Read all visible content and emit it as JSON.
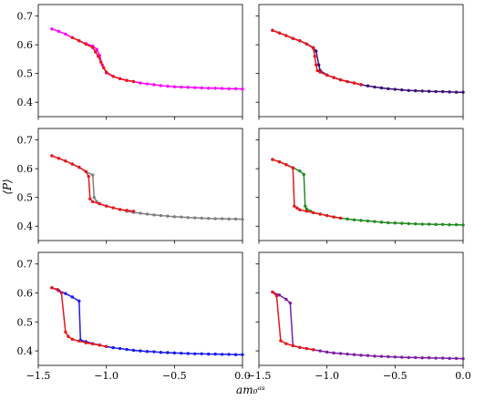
{
  "figure": {
    "ylabel": "⟨P⟩",
    "xlabel": "am₀ᵃˢ",
    "xlim": [
      -1.5,
      0.0
    ],
    "ylim": [
      0.35,
      0.74
    ],
    "xticks": [
      -1.5,
      -1.0,
      -0.5,
      0.0
    ],
    "xtick_labels": [
      "−1.5",
      "−1.0",
      "−0.5",
      "0.0"
    ],
    "yticks": [
      0.4,
      0.5,
      0.6,
      0.7
    ],
    "ytick_labels": [
      "0.4",
      "0.5",
      "0.6",
      "0.7"
    ]
  },
  "chart_data": [
    {
      "type": "line",
      "panel": "row1-left",
      "series": [
        {
          "color": "#ff00ff",
          "x": [
            -1.4,
            -1.35,
            -1.3,
            -1.25,
            -1.2,
            -1.15,
            -1.1,
            -1.07,
            -1.05,
            -1.03,
            -1.0,
            -0.95,
            -0.9,
            -0.85,
            -0.8,
            -0.75,
            -0.7,
            -0.65,
            -0.6,
            -0.55,
            -0.5,
            -0.45,
            -0.4,
            -0.35,
            -0.3,
            -0.25,
            -0.2,
            -0.15,
            -0.1,
            -0.05,
            0.0
          ],
          "y": [
            0.655,
            0.647,
            0.637,
            0.625,
            0.614,
            0.604,
            0.596,
            0.584,
            0.563,
            0.53,
            0.502,
            0.49,
            0.482,
            0.476,
            0.472,
            0.467,
            0.464,
            0.461,
            0.458,
            0.456,
            0.454,
            0.453,
            0.452,
            0.451,
            0.45,
            0.449,
            0.449,
            0.448,
            0.447,
            0.447,
            0.446
          ]
        },
        {
          "color": "#e8171a",
          "x": [
            -1.25,
            -1.2,
            -1.15,
            -1.1,
            -1.08,
            -1.06,
            -1.04,
            -1.02,
            -1.0,
            -0.95,
            -0.9,
            -0.85,
            -0.8
          ],
          "y": [
            0.625,
            0.614,
            0.602,
            0.59,
            0.575,
            0.56,
            0.54,
            0.52,
            0.505,
            0.49,
            0.482,
            0.476,
            0.472
          ]
        }
      ]
    },
    {
      "type": "line",
      "panel": "row1-right",
      "series": [
        {
          "color": "#3a1078",
          "x": [
            -1.4,
            -1.35,
            -1.3,
            -1.25,
            -1.2,
            -1.15,
            -1.1,
            -1.08,
            -1.06,
            -1.05,
            -1.0,
            -0.95,
            -0.9,
            -0.85,
            -0.8,
            -0.75,
            -0.7,
            -0.65,
            -0.6,
            -0.55,
            -0.5,
            -0.45,
            -0.4,
            -0.35,
            -0.3,
            -0.25,
            -0.2,
            -0.15,
            -0.1,
            -0.05,
            0.0
          ],
          "y": [
            0.65,
            0.641,
            0.632,
            0.622,
            0.614,
            0.603,
            0.59,
            0.578,
            0.53,
            0.51,
            0.495,
            0.486,
            0.478,
            0.472,
            0.467,
            0.461,
            0.457,
            0.453,
            0.45,
            0.447,
            0.445,
            0.443,
            0.441,
            0.44,
            0.439,
            0.438,
            0.437,
            0.437,
            0.436,
            0.435,
            0.435
          ]
        },
        {
          "color": "#e8171a",
          "x": [
            -1.4,
            -1.35,
            -1.3,
            -1.25,
            -1.2,
            -1.15,
            -1.1,
            -1.09,
            -1.08,
            -1.07,
            -1.05,
            -1.0,
            -0.95,
            -0.9,
            -0.85,
            -0.8,
            -0.75
          ],
          "y": [
            0.65,
            0.641,
            0.632,
            0.622,
            0.614,
            0.603,
            0.588,
            0.56,
            0.53,
            0.51,
            0.505,
            0.494,
            0.486,
            0.478,
            0.472,
            0.467,
            0.462
          ]
        }
      ]
    },
    {
      "type": "line",
      "panel": "row2-left",
      "series": [
        {
          "color": "#808080",
          "x": [
            -1.4,
            -1.35,
            -1.3,
            -1.25,
            -1.2,
            -1.15,
            -1.1,
            -1.09,
            -1.07,
            -1.05,
            -1.0,
            -0.95,
            -0.9,
            -0.85,
            -0.8,
            -0.75,
            -0.7,
            -0.65,
            -0.6,
            -0.55,
            -0.5,
            -0.45,
            -0.4,
            -0.35,
            -0.3,
            -0.25,
            -0.2,
            -0.15,
            -0.1,
            -0.05,
            0.0
          ],
          "y": [
            0.645,
            0.636,
            0.627,
            0.616,
            0.605,
            0.59,
            0.578,
            0.5,
            0.485,
            0.478,
            0.47,
            0.464,
            0.458,
            0.452,
            0.448,
            0.445,
            0.442,
            0.439,
            0.437,
            0.435,
            0.433,
            0.432,
            0.43,
            0.429,
            0.428,
            0.427,
            0.426,
            0.426,
            0.425,
            0.425,
            0.424
          ]
        },
        {
          "color": "#e8171a",
          "x": [
            -1.4,
            -1.35,
            -1.3,
            -1.25,
            -1.2,
            -1.15,
            -1.13,
            -1.12,
            -1.1,
            -1.05,
            -1.0,
            -0.95,
            -0.9,
            -0.85,
            -0.8
          ],
          "y": [
            0.645,
            0.636,
            0.627,
            0.616,
            0.605,
            0.59,
            0.573,
            0.495,
            0.485,
            0.478,
            0.47,
            0.464,
            0.458,
            0.455,
            0.452
          ]
        }
      ]
    },
    {
      "type": "line",
      "panel": "row2-right",
      "series": [
        {
          "color": "#228b22",
          "x": [
            -1.4,
            -1.35,
            -1.3,
            -1.25,
            -1.2,
            -1.17,
            -1.16,
            -1.15,
            -1.12,
            -1.1,
            -1.05,
            -1.0,
            -0.95,
            -0.9,
            -0.85,
            -0.8,
            -0.75,
            -0.7,
            -0.65,
            -0.6,
            -0.55,
            -0.5,
            -0.45,
            -0.4,
            -0.35,
            -0.3,
            -0.25,
            -0.2,
            -0.15,
            -0.1,
            -0.05,
            0.0
          ],
          "y": [
            0.632,
            0.624,
            0.614,
            0.603,
            0.592,
            0.58,
            0.47,
            0.46,
            0.452,
            0.447,
            0.442,
            0.437,
            0.432,
            0.428,
            0.425,
            0.422,
            0.42,
            0.418,
            0.416,
            0.414,
            0.412,
            0.411,
            0.41,
            0.409,
            0.408,
            0.407,
            0.407,
            0.406,
            0.406,
            0.405,
            0.405,
            0.404
          ]
        },
        {
          "color": "#e8171a",
          "x": [
            -1.4,
            -1.35,
            -1.3,
            -1.25,
            -1.24,
            -1.22,
            -1.2,
            -1.15,
            -1.1,
            -1.05,
            -1.0,
            -0.95,
            -0.9
          ],
          "y": [
            0.632,
            0.624,
            0.614,
            0.603,
            0.47,
            0.463,
            0.457,
            0.452,
            0.447,
            0.442,
            0.437,
            0.432,
            0.428
          ]
        }
      ]
    },
    {
      "type": "line",
      "panel": "row3-left",
      "series": [
        {
          "color": "#1a1aee",
          "x": [
            -1.4,
            -1.35,
            -1.3,
            -1.25,
            -1.2,
            -1.19,
            -1.15,
            -1.1,
            -1.05,
            -1.0,
            -0.95,
            -0.9,
            -0.85,
            -0.8,
            -0.75,
            -0.7,
            -0.65,
            -0.6,
            -0.55,
            -0.5,
            -0.45,
            -0.4,
            -0.35,
            -0.3,
            -0.25,
            -0.2,
            -0.15,
            -0.1,
            -0.05,
            0.0
          ],
          "y": [
            0.618,
            0.608,
            0.598,
            0.586,
            0.572,
            0.437,
            0.432,
            0.425,
            0.42,
            0.415,
            0.411,
            0.408,
            0.405,
            0.402,
            0.4,
            0.398,
            0.397,
            0.395,
            0.394,
            0.393,
            0.392,
            0.391,
            0.39,
            0.39,
            0.389,
            0.389,
            0.388,
            0.388,
            0.387,
            0.387
          ]
        },
        {
          "color": "#e8171a",
          "x": [
            -1.4,
            -1.36,
            -1.33,
            -1.3,
            -1.28,
            -1.25,
            -1.2,
            -1.15,
            -1.1,
            -1.05,
            -1.0
          ],
          "y": [
            0.618,
            0.612,
            0.6,
            0.465,
            0.45,
            0.44,
            0.434,
            0.428,
            0.424,
            0.42,
            0.415
          ]
        }
      ]
    },
    {
      "type": "line",
      "panel": "row3-right",
      "series": [
        {
          "color": "#7b1fa2",
          "x": [
            -1.4,
            -1.35,
            -1.3,
            -1.27,
            -1.25,
            -1.2,
            -1.15,
            -1.1,
            -1.05,
            -1.0,
            -0.95,
            -0.9,
            -0.85,
            -0.8,
            -0.75,
            -0.7,
            -0.65,
            -0.6,
            -0.55,
            -0.5,
            -0.45,
            -0.4,
            -0.35,
            -0.3,
            -0.25,
            -0.2,
            -0.15,
            -0.1,
            -0.05,
            0.0
          ],
          "y": [
            0.603,
            0.593,
            0.578,
            0.565,
            0.418,
            0.412,
            0.408,
            0.404,
            0.4,
            0.396,
            0.393,
            0.391,
            0.389,
            0.387,
            0.385,
            0.384,
            0.382,
            0.381,
            0.38,
            0.379,
            0.378,
            0.377,
            0.377,
            0.376,
            0.376,
            0.375,
            0.375,
            0.374,
            0.374,
            0.373
          ]
        },
        {
          "color": "#e8171a",
          "x": [
            -1.4,
            -1.37,
            -1.34,
            -1.3,
            -1.25,
            -1.2,
            -1.15,
            -1.1
          ],
          "y": [
            0.603,
            0.59,
            0.435,
            0.425,
            0.418,
            0.412,
            0.408,
            0.404
          ]
        }
      ]
    }
  ]
}
